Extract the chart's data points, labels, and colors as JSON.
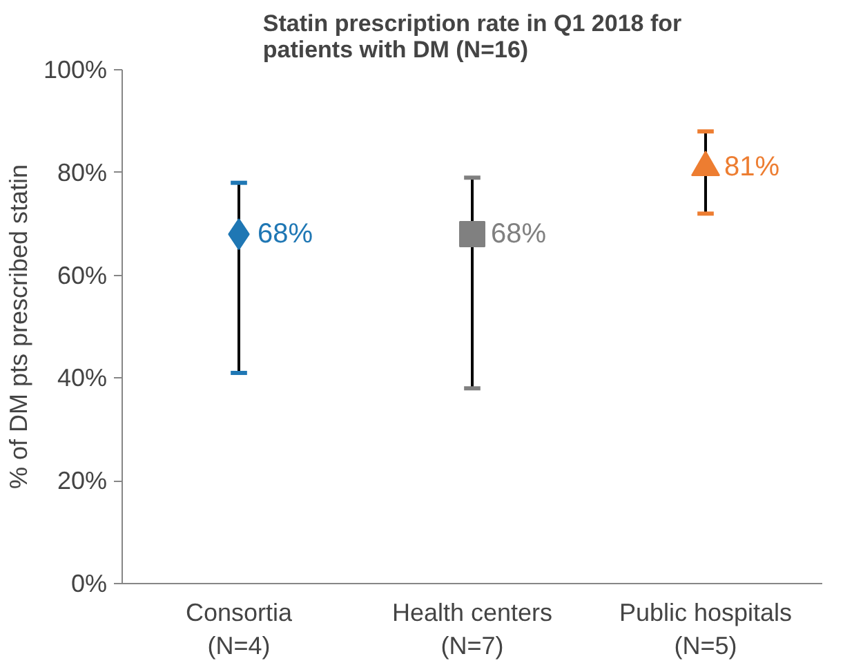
{
  "chart_data": {
    "type": "scatter",
    "title": "Statin prescription rate in Q1 2018 for\npatients with DM (N=16)",
    "ylabel": "% of DM pts prescribed statin",
    "categories": [
      "Consortia\n(N=4)",
      "Health centers\n(N=7)",
      "Public hospitals\n(N=5)"
    ],
    "series": [
      {
        "x": [
          "Consortia\n(N=4)"
        ],
        "values": [
          68
        ],
        "color": "#1f77b4",
        "marker": "diamond",
        "errors": [
          [
            41,
            78
          ]
        ],
        "value_labels": [
          "68%"
        ]
      },
      {
        "x": [
          "Health centers\n(N=7)"
        ],
        "values": [
          68
        ],
        "color": "#808080",
        "marker": "square",
        "errors": [
          [
            38,
            79
          ]
        ],
        "value_labels": [
          "68%"
        ]
      },
      {
        "x": [
          "Public hospitals\n(N=5)"
        ],
        "values": [
          81
        ],
        "color": "#ed7d31",
        "marker": "triangle",
        "errors": [
          [
            72,
            88
          ]
        ],
        "value_labels": [
          "81%"
        ]
      }
    ],
    "ylim": [
      0,
      100
    ],
    "yticks": [
      {
        "value": 0,
        "label": "0%"
      },
      {
        "value": 20,
        "label": "20%"
      },
      {
        "value": 40,
        "label": "40%"
      },
      {
        "value": 60,
        "label": "60%"
      },
      {
        "value": 80,
        "label": "80%"
      },
      {
        "value": 100,
        "label": "100%"
      }
    ],
    "grid": false
  }
}
